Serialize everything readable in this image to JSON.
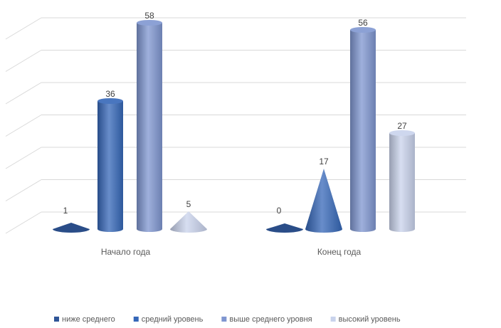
{
  "chart_data": {
    "type": "bar",
    "subtype": "3d-cylinder-cone",
    "categories": [
      "Начало года",
      "Конец года"
    ],
    "series": [
      {
        "name": "ниже среднего",
        "values": [
          1,
          0
        ],
        "color": "#2f5597"
      },
      {
        "name": "средний уровень",
        "values": [
          36,
          17
        ],
        "color": "#3567b8"
      },
      {
        "name": "выше среднего уровня",
        "values": [
          58,
          56
        ],
        "color": "#7f96d0"
      },
      {
        "name": "высокий уровень",
        "values": [
          5,
          27
        ],
        "color": "#c9d3ec"
      }
    ],
    "shapes": {
      "Начало года": [
        "cone",
        "cylinder",
        "cylinder",
        "cone"
      ],
      "Конец года": [
        "cone",
        "cone",
        "cylinder",
        "cylinder"
      ]
    },
    "grid": true,
    "legend_position": "bottom",
    "title": "",
    "xlabel": "",
    "ylabel": ""
  }
}
